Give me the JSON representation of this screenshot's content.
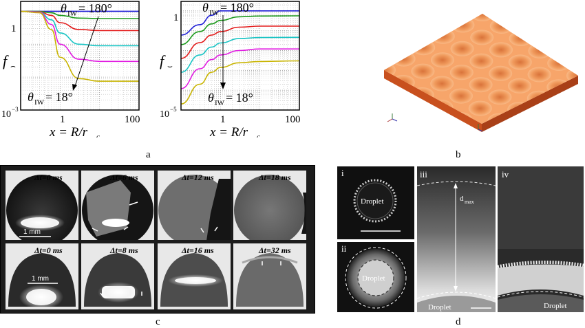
{
  "panel_labels": {
    "a": "a",
    "b": "b",
    "c": "c",
    "d": "d"
  },
  "chart_left": {
    "ylabel_main": "f",
    "ylabel_sub": "⌢",
    "y_top": "1",
    "y_bottom_base": "10",
    "y_bottom_exp": "−3",
    "x_tick_1": "1",
    "x_tick_100": "100",
    "xlabel": "x = R/r",
    "xlabel_sub": "c",
    "annot_top_theta": "θ",
    "annot_top_sub": "IW",
    "annot_top_value": " = 180°",
    "annot_bot_theta": "θ",
    "annot_bot_sub": "IW",
    "annot_bot_value": " = 18°"
  },
  "chart_right": {
    "ylabel_main": "f",
    "ylabel_sub": "⌣",
    "y_top": "1",
    "y_bottom_base": "10",
    "y_bottom_exp": "−5",
    "x_tick_1": "1",
    "x_tick_100": "100",
    "xlabel": "x = R/r",
    "xlabel_sub": "c",
    "annot_top_theta": "θ",
    "annot_top_sub": "IW",
    "annot_top_value": " = 180°",
    "annot_bot_theta": "θ",
    "annot_bot_sub": "IW",
    "annot_bot_value": " = 18°"
  },
  "chart_data": [
    {
      "type": "line",
      "xscale": "log",
      "yscale": "log",
      "xlim": [
        0.1,
        100
      ],
      "ylim": [
        0.001,
        2
      ],
      "series": [
        {
          "color": "#1f1fd6",
          "x": [
            0.1,
            0.3,
            1,
            3,
            10,
            100
          ],
          "y": [
            1,
            1,
            1,
            1,
            1,
            1
          ]
        },
        {
          "color": "#1a9a1a",
          "x": [
            0.1,
            0.3,
            0.6,
            1,
            3,
            10,
            100
          ],
          "y": [
            1,
            0.99,
            0.9,
            0.75,
            0.62,
            0.6,
            0.6
          ]
        },
        {
          "color": "#e31a1a",
          "x": [
            0.1,
            0.3,
            0.6,
            1,
            3,
            10,
            100
          ],
          "y": [
            1,
            0.97,
            0.75,
            0.45,
            0.28,
            0.26,
            0.26
          ]
        },
        {
          "color": "#17c4c4",
          "x": [
            0.1,
            0.3,
            0.6,
            1,
            3,
            10,
            100
          ],
          "y": [
            1,
            0.95,
            0.55,
            0.22,
            0.1,
            0.09,
            0.09
          ]
        },
        {
          "color": "#e01ae0",
          "x": [
            0.1,
            0.3,
            0.6,
            1,
            3,
            10,
            100
          ],
          "y": [
            1,
            0.93,
            0.4,
            0.1,
            0.035,
            0.03,
            0.03
          ]
        },
        {
          "color": "#c8b400",
          "x": [
            0.1,
            0.3,
            0.6,
            1,
            3,
            10,
            100
          ],
          "y": [
            1,
            0.9,
            0.28,
            0.04,
            0.009,
            0.0075,
            0.0075
          ]
        }
      ]
    },
    {
      "type": "line",
      "xscale": "log",
      "yscale": "log",
      "xlim": [
        0.1,
        100
      ],
      "ylim": [
        1e-05,
        3
      ],
      "series": [
        {
          "color": "#1f1fd6",
          "x": [
            0.1,
            0.3,
            0.6,
            1,
            3,
            10,
            100
          ],
          "y": [
            0.06,
            0.2,
            0.6,
            1,
            1,
            1,
            1
          ]
        },
        {
          "color": "#1a9a1a",
          "x": [
            0.1,
            0.3,
            0.6,
            1,
            3,
            10,
            100
          ],
          "y": [
            0.02,
            0.09,
            0.22,
            0.33,
            0.5,
            0.55,
            0.56
          ]
        },
        {
          "color": "#e31a1a",
          "x": [
            0.1,
            0.3,
            0.6,
            1,
            3,
            10,
            100
          ],
          "y": [
            0.004,
            0.025,
            0.06,
            0.09,
            0.15,
            0.17,
            0.17
          ]
        },
        {
          "color": "#17c4c4",
          "x": [
            0.1,
            0.3,
            0.6,
            1,
            3,
            10,
            100
          ],
          "y": [
            0.0008,
            0.006,
            0.015,
            0.024,
            0.04,
            0.045,
            0.046
          ]
        },
        {
          "color": "#e01ae0",
          "x": [
            0.1,
            0.3,
            0.6,
            1,
            3,
            10,
            100
          ],
          "y": [
            0.00012,
            0.0012,
            0.0035,
            0.006,
            0.01,
            0.012,
            0.012
          ]
        },
        {
          "color": "#c8b400",
          "x": [
            0.1,
            0.3,
            0.6,
            1,
            3,
            10,
            100
          ],
          "y": [
            2e-05,
            0.0002,
            0.0008,
            0.0014,
            0.0024,
            0.0028,
            0.003
          ]
        }
      ]
    }
  ],
  "panel_c": {
    "frames_top": [
      {
        "label": "Δt=0 ms"
      },
      {
        "label": "Δt=6 ms"
      },
      {
        "label": "Δt=12 ms"
      },
      {
        "label": "Δt=18 ms"
      }
    ],
    "frames_bottom": [
      {
        "label": "Δt=0 ms"
      },
      {
        "label": "Δt=8 ms"
      },
      {
        "label": "Δt=16 ms"
      },
      {
        "label": "Δt=32 ms"
      }
    ],
    "scale_top": "1 mm",
    "scale_bottom": "1 mm"
  },
  "panel_d": {
    "sub_i": "i",
    "sub_ii": "ii",
    "sub_iii": "iii",
    "sub_iv": "iv",
    "droplet_i": "Droplet",
    "droplet_ii": "Droplet",
    "droplet_iii": "Droplet",
    "droplet_iv": "Droplet",
    "dmax_main": "d",
    "dmax_sub": "max"
  },
  "colors": {
    "surface_top": "#f59a5a",
    "surface_side": "#c8501e",
    "series_blue": "#1f1fd6",
    "series_green": "#1a9a1a",
    "series_red": "#e31a1a",
    "series_cyan": "#17c4c4",
    "series_magenta": "#e01ae0",
    "series_yellow": "#c8b400"
  }
}
